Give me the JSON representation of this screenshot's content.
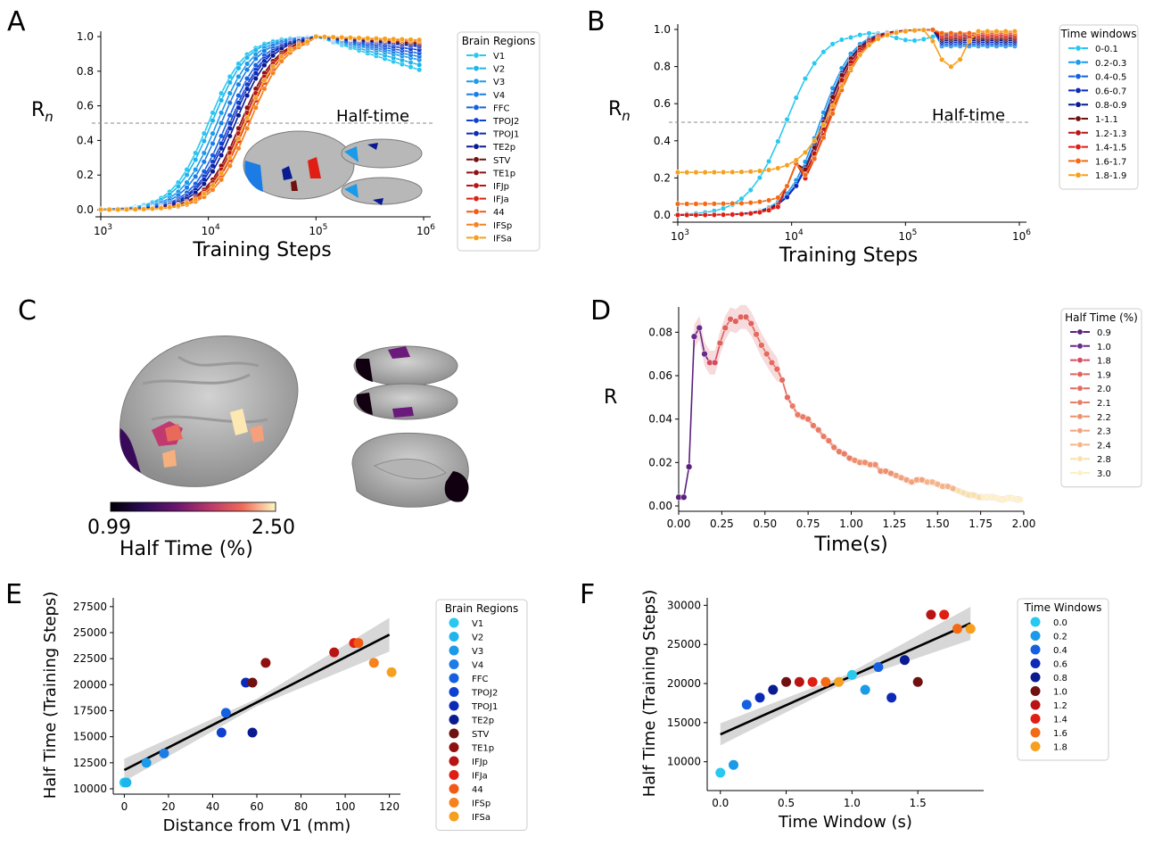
{
  "panel_labels": [
    "A",
    "B",
    "C",
    "D",
    "E",
    "F"
  ],
  "colors": {
    "regions": [
      "#28c8f0",
      "#1eb4ec",
      "#1a9ae8",
      "#1a7ce4",
      "#1560e0",
      "#1040d0",
      "#0c2ab8",
      "#0a1a90",
      "#701010",
      "#8e1010",
      "#b81414",
      "#e01e14",
      "#f25a14",
      "#f5821e",
      "#f5a01e"
    ],
    "windows": [
      "#28c8f0",
      "#1a9ae8",
      "#1560e0",
      "#0c2ab8",
      "#0a1a90",
      "#701010",
      "#b81414",
      "#e01e14",
      "#f26a14",
      "#f5a01e"
    ],
    "halftime": [
      "#5a2080",
      "#6a2a8a",
      "#d84a60",
      "#e0605c",
      "#e66a5e",
      "#ea7c64",
      "#ee906e",
      "#f2a27c",
      "#f4b48a",
      "#f8e0ac",
      "#fcf0c4"
    ]
  },
  "chart_data": [
    {
      "id": "A",
      "type": "line",
      "ylabel": "R_n",
      "xlabel": "Training Steps",
      "xscale": "log",
      "xlim": [
        1000,
        1000000
      ],
      "ylim": [
        0,
        1
      ],
      "yticks": [
        "0.0",
        "0.2",
        "0.4",
        "0.6",
        "0.8",
        "1.0"
      ],
      "annotation": "Half-time",
      "threshold": 0.5,
      "legend_title": "Brain Regions",
      "legend_position": "right",
      "series": [
        "V1",
        "V2",
        "V3",
        "V4",
        "FFC",
        "TPOJ2",
        "TPOJ1",
        "TE2p",
        "STV",
        "TE1p",
        "IFJp",
        "IFJa",
        "44",
        "IFSp",
        "IFSa"
      ],
      "midpoints_log10": [
        4.0,
        4.03,
        4.08,
        4.12,
        4.17,
        4.2,
        4.22,
        4.25,
        4.3,
        4.3,
        4.32,
        4.35,
        4.38,
        4.38,
        4.34
      ],
      "final_values": [
        0.8,
        0.83,
        0.86,
        0.88,
        0.9,
        0.92,
        0.94,
        0.95,
        0.96,
        0.96,
        0.97,
        0.97,
        0.97,
        0.97,
        0.98
      ]
    },
    {
      "id": "B",
      "type": "line",
      "ylabel": "R_n",
      "xlabel": "Training Steps",
      "xscale": "log",
      "xlim": [
        1000,
        1000000
      ],
      "ylim": [
        0,
        1
      ],
      "yticks": [
        "0.0",
        "0.2",
        "0.4",
        "0.6",
        "0.8",
        "1.0"
      ],
      "annotation": "Half-time",
      "threshold": 0.5,
      "legend_title": "Time windows",
      "legend_position": "top-right",
      "series": [
        "0-0.1",
        "0.2-0.3",
        "0.4-0.5",
        "0.6-0.7",
        "0.8-0.9",
        "1-1.1",
        "1.2-1.3",
        "1.4-1.5",
        "1.6-1.7",
        "1.8-1.9"
      ],
      "midpoints_log10": [
        3.95,
        4.25,
        4.27,
        4.28,
        4.3,
        4.28,
        4.3,
        4.32,
        4.35,
        4.38
      ],
      "start_values": [
        0.0,
        0.0,
        0.0,
        0.0,
        0.0,
        0.0,
        0.0,
        0.0,
        0.06,
        0.23
      ]
    },
    {
      "id": "C",
      "type": "colorbar",
      "label": "Half Time (%)",
      "min_label": "0.99",
      "max_label": "2.50"
    },
    {
      "id": "D",
      "type": "line",
      "ylabel": "R",
      "xlabel": "Time(s)",
      "xlim": [
        0,
        2.0
      ],
      "ylim": [
        0,
        0.09
      ],
      "xticks": [
        "0.00",
        "0.25",
        "0.50",
        "0.75",
        "1.00",
        "1.25",
        "1.50",
        "1.75",
        "2.00"
      ],
      "yticks": [
        "0.00",
        "0.02",
        "0.04",
        "0.06",
        "0.08"
      ],
      "legend_title": "Half Time (%)",
      "legend_position": "right",
      "legend": [
        "0.9",
        "1.0",
        "1.8",
        "1.9",
        "2.0",
        "2.1",
        "2.2",
        "2.3",
        "2.4",
        "2.8",
        "3.0"
      ],
      "x": [
        0.0,
        0.03,
        0.06,
        0.09,
        0.12,
        0.15,
        0.18,
        0.21,
        0.24,
        0.27,
        0.3,
        0.33,
        0.36,
        0.39,
        0.42,
        0.45,
        0.48,
        0.51,
        0.54,
        0.57,
        0.6,
        0.63,
        0.66,
        0.69,
        0.72,
        0.75,
        0.78,
        0.81,
        0.84,
        0.87,
        0.9,
        0.93,
        0.96,
        0.99,
        1.02,
        1.05,
        1.08,
        1.11,
        1.14,
        1.17,
        1.2,
        1.23,
        1.26,
        1.29,
        1.32,
        1.35,
        1.38,
        1.41,
        1.44,
        1.47,
        1.5,
        1.53,
        1.56,
        1.59,
        1.62,
        1.65,
        1.68,
        1.71,
        1.74,
        1.77,
        1.8,
        1.83,
        1.86,
        1.89,
        1.92,
        1.95,
        1.98
      ],
      "y": [
        0.004,
        0.004,
        0.018,
        0.078,
        0.082,
        0.07,
        0.066,
        0.066,
        0.075,
        0.082,
        0.086,
        0.085,
        0.087,
        0.087,
        0.084,
        0.079,
        0.074,
        0.07,
        0.066,
        0.063,
        0.058,
        0.05,
        0.046,
        0.042,
        0.041,
        0.04,
        0.037,
        0.035,
        0.032,
        0.03,
        0.027,
        0.025,
        0.024,
        0.022,
        0.021,
        0.02,
        0.02,
        0.019,
        0.019,
        0.016,
        0.016,
        0.015,
        0.014,
        0.013,
        0.012,
        0.011,
        0.012,
        0.012,
        0.011,
        0.011,
        0.01,
        0.009,
        0.009,
        0.008,
        0.007,
        0.006,
        0.005,
        0.005,
        0.004,
        0.004,
        0.004,
        0.004,
        0.003,
        0.003,
        0.004,
        0.003,
        0.003
      ],
      "color_index": [
        0,
        0,
        0,
        1,
        1,
        1,
        2,
        2,
        3,
        3,
        3,
        3,
        3,
        3,
        3,
        4,
        4,
        4,
        4,
        4,
        4,
        4,
        5,
        5,
        5,
        5,
        5,
        5,
        5,
        5,
        5,
        5,
        5,
        5,
        6,
        6,
        6,
        6,
        6,
        6,
        6,
        6,
        7,
        7,
        7,
        7,
        7,
        7,
        8,
        8,
        8,
        8,
        8,
        8,
        9,
        9,
        9,
        9,
        9,
        10,
        10,
        10,
        10,
        10,
        10,
        10,
        10
      ]
    },
    {
      "id": "E",
      "type": "scatter",
      "xlabel": "Distance from V1 (mm)",
      "ylabel": "Half Time (Training Steps)",
      "xlim": [
        -5,
        125
      ],
      "ylim": [
        10000,
        28000
      ],
      "xticks": [
        "0",
        "20",
        "40",
        "60",
        "80",
        "100",
        "120"
      ],
      "yticks": [
        "10000",
        "12500",
        "15000",
        "17500",
        "20000",
        "22500",
        "25000",
        "27500"
      ],
      "legend_title": "Brain Regions",
      "legend_position": "right",
      "legend": [
        "V1",
        "V2",
        "V3",
        "V4",
        "FFC",
        "TPOJ2",
        "TPOJ1",
        "TE2p",
        "STV",
        "TE1p",
        "IFJp",
        "IFJa",
        "44",
        "IFSp",
        "IFSa"
      ],
      "x": [
        0,
        1,
        10,
        18,
        46,
        44,
        55,
        58,
        58,
        64,
        95,
        104,
        106,
        113,
        121
      ],
      "y": [
        10600,
        10600,
        12500,
        13400,
        17300,
        15400,
        20200,
        15400,
        20200,
        22100,
        23100,
        24000,
        24000,
        22100,
        21200
      ],
      "fit": {
        "x0": 0,
        "y0": 11800,
        "x1": 120,
        "y1": 24800
      }
    },
    {
      "id": "F",
      "type": "scatter",
      "xlabel": "Time Window (s)",
      "ylabel": "Half Time (Training Steps)",
      "xlim": [
        -0.1,
        2.0
      ],
      "ylim": [
        7000,
        30500
      ],
      "xticks": [
        "0.0",
        "0.5",
        "1.0",
        "1.5"
      ],
      "yticks": [
        "10000",
        "15000",
        "20000",
        "25000",
        "30000"
      ],
      "legend_title": "Time Windows",
      "legend_position": "right",
      "legend": [
        "0.0",
        "0.2",
        "0.4",
        "0.6",
        "0.8",
        "1.0",
        "1.2",
        "1.4",
        "1.6",
        "1.8"
      ],
      "x": [
        0.0,
        0.1,
        0.2,
        0.3,
        0.4,
        0.5,
        0.6,
        0.7,
        0.8,
        0.9,
        1.0,
        1.1,
        1.2,
        1.3,
        1.4,
        1.5,
        1.6,
        1.7,
        1.8,
        1.9
      ],
      "y": [
        8600,
        9600,
        17300,
        18200,
        19200,
        20200,
        20200,
        20200,
        20200,
        20200,
        21100,
        19200,
        22100,
        18200,
        23000,
        20200,
        28800,
        28800,
        27000,
        27000
      ],
      "fit": {
        "x0": 0,
        "y0": 13500,
        "x1": 1.9,
        "y1": 27700
      }
    }
  ]
}
